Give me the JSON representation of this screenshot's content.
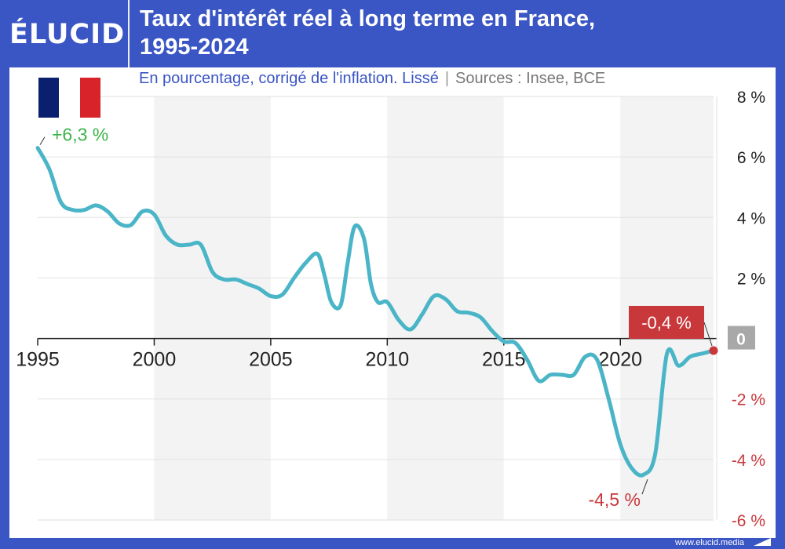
{
  "header": {
    "logo": "ÉLUCID",
    "title_line1": "Taux d'intérêt réel à long terme en France,",
    "title_line2": "1995-2024"
  },
  "subtitle": {
    "text": "En pourcentage, corrigé de l'inflation. Lissé",
    "separator": "|",
    "sources": "Sources : Insee, BCE"
  },
  "footer": {
    "url": "www.elucid.media"
  },
  "colors": {
    "brand": "#3a55c4",
    "line": "#4bb5c8",
    "positive": "#3cb44a",
    "negative": "#c8373a",
    "zero_badge": "#a8a8a8",
    "band": "#f3f3f3"
  },
  "chart_data": {
    "type": "line",
    "title": "Taux d'intérêt réel à long terme en France, 1995-2024",
    "xlabel": "",
    "ylabel": "",
    "xlim": [
      1995,
      2024
    ],
    "ylim": [
      -6,
      8
    ],
    "x_ticks": [
      1995,
      2000,
      2005,
      2010,
      2015,
      2020
    ],
    "x_tick_labels": [
      "1995",
      "2000",
      "2005",
      "2010",
      "2015",
      "2020"
    ],
    "y_ticks": [
      8,
      6,
      4,
      2,
      0,
      -2,
      -4,
      -6
    ],
    "y_tick_labels": [
      "8 %",
      "6 %",
      "4 %",
      "2 %",
      "0",
      "-2 %",
      "-4 %",
      "-6 %"
    ],
    "grid": true,
    "series": [
      {
        "x": [
          1995.0,
          1995.5,
          1996.0,
          1996.5,
          1997.0,
          1997.5,
          1998.0,
          1998.5,
          1999.0,
          1999.5,
          2000.0,
          2000.5,
          2001.0,
          2001.5,
          2002.0,
          2002.5,
          2003.0,
          2003.5,
          2004.0,
          2004.5,
          2005.0,
          2005.5,
          2006.0,
          2006.5,
          2007.0,
          2007.3,
          2007.6,
          2008.0,
          2008.3,
          2008.6,
          2009.0,
          2009.3,
          2009.6,
          2010.0,
          2010.5,
          2011.0,
          2011.5,
          2012.0,
          2012.5,
          2013.0,
          2013.5,
          2014.0,
          2014.5,
          2015.0,
          2015.5,
          2016.0,
          2016.5,
          2017.0,
          2017.5,
          2018.0,
          2018.5,
          2019.0,
          2019.5,
          2020.0,
          2020.5,
          2021.0,
          2021.5,
          2022.0,
          2022.5,
          2023.0,
          2023.5,
          2024.0
        ],
        "y": [
          6.3,
          5.6,
          4.5,
          4.25,
          4.25,
          4.4,
          4.2,
          3.8,
          3.75,
          4.2,
          4.1,
          3.4,
          3.1,
          3.1,
          3.1,
          2.2,
          1.95,
          1.95,
          1.8,
          1.65,
          1.4,
          1.45,
          2.0,
          2.5,
          2.8,
          2.1,
          1.2,
          1.1,
          2.5,
          3.7,
          3.3,
          1.8,
          1.2,
          1.2,
          0.6,
          0.3,
          0.8,
          1.4,
          1.3,
          0.9,
          0.85,
          0.7,
          0.25,
          -0.1,
          -0.15,
          -0.7,
          -1.4,
          -1.2,
          -1.2,
          -1.2,
          -0.6,
          -0.7,
          -2.0,
          -3.5,
          -4.3,
          -4.5,
          -3.8,
          -0.5,
          -0.9,
          -0.6,
          -0.5,
          -0.4
        ]
      }
    ],
    "annotations": [
      {
        "x": 1995,
        "y": 6.3,
        "text": "+6,3 %"
      },
      {
        "x": 2021,
        "y": -4.5,
        "text": "-4,5 %"
      },
      {
        "x": 2024,
        "y": -0.4,
        "text": "-0,4 %"
      }
    ]
  }
}
